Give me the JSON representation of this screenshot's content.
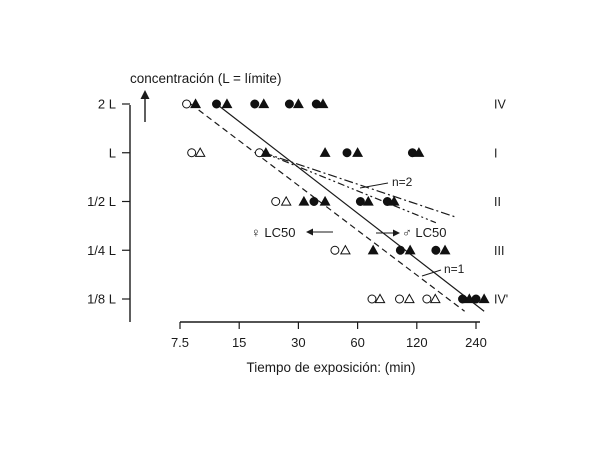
{
  "chart_data": {
    "type": "scatter",
    "ylabel": "concentración (L = límite)",
    "xlabel": "Tiempo de exposición: (min)",
    "x_scale": "log",
    "y_scale": "log",
    "x_ticks": [
      7.5,
      15,
      30,
      60,
      120,
      240
    ],
    "x_tick_labels": [
      "7.5",
      "15",
      "30",
      "60",
      "120",
      "240"
    ],
    "y_ticks": [
      2,
      1,
      0.5,
      0.25,
      0.125
    ],
    "y_tick_labels": [
      "2 L",
      "L",
      "1/2 L",
      "1/4 L",
      "1/8 L"
    ],
    "group_labels": [
      "IV",
      "I",
      "II",
      "III",
      "IV'"
    ],
    "series": [
      {
        "marker": "open-circle",
        "points": [
          [
            8.1,
            2
          ],
          [
            8.6,
            1
          ],
          [
            19,
            1
          ],
          [
            23,
            0.5
          ],
          [
            46,
            0.25
          ],
          [
            71,
            0.125
          ],
          [
            98,
            0.125
          ],
          [
            135,
            0.125
          ]
        ]
      },
      {
        "marker": "open-triangle",
        "points": [
          [
            9.5,
            1
          ],
          [
            26,
            0.5
          ],
          [
            52,
            0.25
          ],
          [
            78,
            0.125
          ],
          [
            110,
            0.125
          ],
          [
            149,
            0.125
          ]
        ]
      },
      {
        "marker": "filled-circle",
        "points": [
          [
            11.5,
            2
          ],
          [
            18,
            2
          ],
          [
            27,
            2
          ],
          [
            37,
            2
          ],
          [
            53,
            1
          ],
          [
            114,
            1
          ],
          [
            36,
            0.5
          ],
          [
            62,
            0.5
          ],
          [
            85,
            0.5
          ],
          [
            99,
            0.25
          ],
          [
            150,
            0.25
          ],
          [
            205,
            0.125
          ],
          [
            240,
            0.125
          ]
        ]
      },
      {
        "marker": "filled-triangle",
        "points": [
          [
            9,
            2
          ],
          [
            13,
            2
          ],
          [
            20,
            2
          ],
          [
            30,
            2
          ],
          [
            40,
            2
          ],
          [
            20.5,
            1
          ],
          [
            41,
            1
          ],
          [
            60,
            1
          ],
          [
            123,
            1
          ],
          [
            32,
            0.5
          ],
          [
            41,
            0.5
          ],
          [
            68,
            0.5
          ],
          [
            92,
            0.5
          ],
          [
            72,
            0.25
          ],
          [
            111,
            0.25
          ],
          [
            167,
            0.25
          ],
          [
            222,
            0.125
          ],
          [
            264,
            0.125
          ]
        ]
      }
    ],
    "lines": [
      {
        "style": "solid",
        "from": [
          11.5,
          2
        ],
        "to": [
          264,
          0.105
        ]
      },
      {
        "style": "dashed",
        "from": [
          8.5,
          2
        ],
        "to": [
          210,
          0.105
        ]
      },
      {
        "style": "dash-dot",
        "label": "n=2",
        "from": [
          20,
          1
        ],
        "to": [
          190,
          0.4
        ]
      },
      {
        "style": "dash-dot-dot",
        "from": [
          20,
          1
        ],
        "to": [
          150,
          0.37
        ]
      }
    ],
    "annotations": [
      {
        "text": "n=2"
      },
      {
        "text": "n=1"
      },
      {
        "text": "♀ LC50"
      },
      {
        "text": "♂ LC50"
      }
    ]
  }
}
